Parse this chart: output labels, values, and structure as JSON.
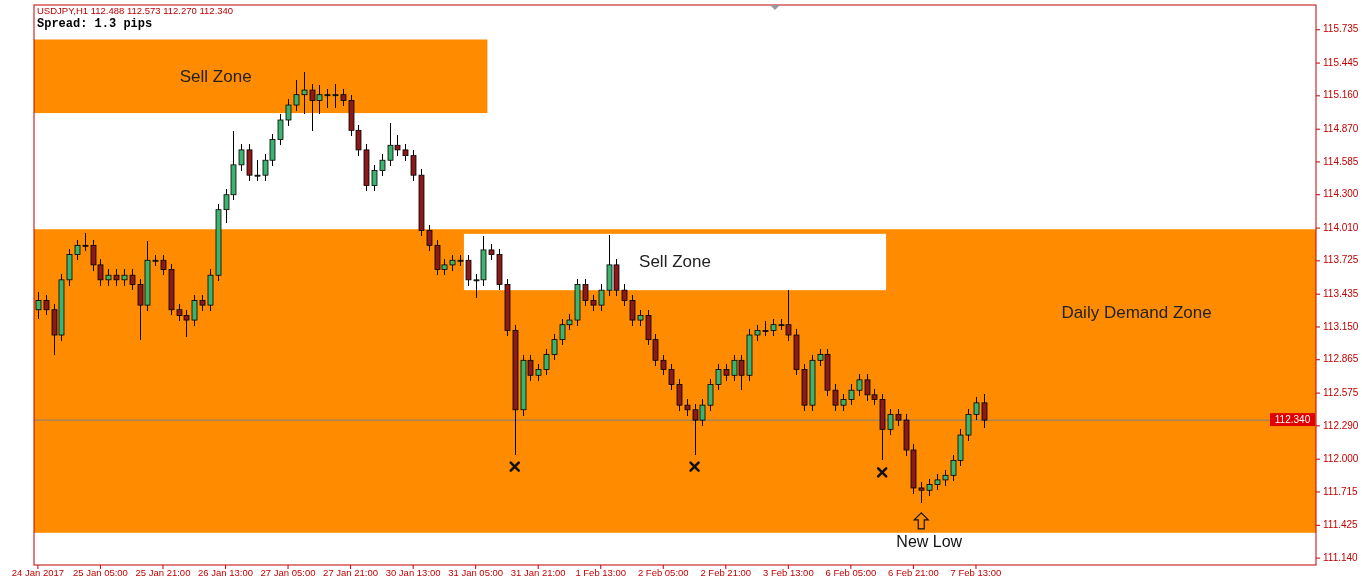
{
  "chart_data": {
    "type": "candlestick",
    "title": "USDJPY,H1  112.488 112.573 112.270 112.340",
    "subtitle": "Spread: 1.3 pips",
    "categories": [
      "24 Jan 2017",
      null,
      null,
      null,
      null,
      null,
      null,
      null,
      "25 Jan 05:00",
      null,
      null,
      null,
      null,
      null,
      null,
      null,
      "25 Jan 21:00",
      null,
      null,
      null,
      null,
      null,
      null,
      null,
      "26 Jan 13:00",
      null,
      null,
      null,
      null,
      null,
      null,
      null,
      "27 Jan 05:00",
      null,
      null,
      null,
      null,
      null,
      null,
      null,
      "27 Jan 21:00",
      null,
      null,
      null,
      null,
      null,
      null,
      null,
      "30 Jan 13:00",
      null,
      null,
      null,
      null,
      null,
      null,
      null,
      "31 Jan 05:00",
      null,
      null,
      null,
      null,
      null,
      null,
      null,
      "31 Jan 21:00",
      null,
      null,
      null,
      null,
      null,
      null,
      null,
      "1 Feb 13:00",
      null,
      null,
      null,
      null,
      null,
      null,
      null,
      "2 Feb 05:00",
      null,
      null,
      null,
      null,
      null,
      null,
      null,
      "2 Feb 21:00",
      null,
      null,
      null,
      null,
      null,
      null,
      null,
      "3 Feb 13:00",
      null,
      null,
      null,
      null,
      null,
      null,
      null,
      "6 Feb 05:00",
      null,
      null,
      null,
      null,
      null,
      null,
      null,
      "6 Feb 21:00",
      null,
      null,
      null,
      null,
      null,
      null,
      null,
      "7 Feb 13:00",
      null,
      null,
      null,
      null,
      null,
      null,
      null,
      null,
      null,
      null,
      null,
      null,
      null,
      null,
      null,
      null,
      null,
      null,
      null,
      null,
      null,
      null,
      null,
      null,
      null,
      null,
      null,
      null,
      null,
      null,
      null,
      null,
      null,
      null,
      null,
      null,
      null,
      null,
      null,
      null,
      null,
      null,
      null
    ],
    "ohlc": [
      [
        113.3,
        113.45,
        113.22,
        113.38
      ],
      [
        113.38,
        113.43,
        113.25,
        113.3
      ],
      [
        113.3,
        113.35,
        112.91,
        113.08
      ],
      [
        113.08,
        113.61,
        113.03,
        113.56
      ],
      [
        113.56,
        113.83,
        113.51,
        113.78
      ],
      [
        113.78,
        113.91,
        113.73,
        113.86
      ],
      [
        113.86,
        113.97,
        113.81,
        113.86
      ],
      [
        113.86,
        113.91,
        113.64,
        113.69
      ],
      [
        113.69,
        113.74,
        113.51,
        113.56
      ],
      [
        113.56,
        113.65,
        113.51,
        113.6
      ],
      [
        113.6,
        113.65,
        113.51,
        113.56
      ],
      [
        113.56,
        113.65,
        113.51,
        113.6
      ],
      [
        113.6,
        113.65,
        113.47,
        113.52
      ],
      [
        113.52,
        113.57,
        113.04,
        113.34
      ],
      [
        113.34,
        113.9,
        113.29,
        113.73
      ],
      [
        113.73,
        113.78,
        113.68,
        113.73
      ],
      [
        113.73,
        113.78,
        113.6,
        113.65
      ],
      [
        113.65,
        113.7,
        113.25,
        113.3
      ],
      [
        113.3,
        113.35,
        113.2,
        113.25
      ],
      [
        113.25,
        113.3,
        113.06,
        113.21
      ],
      [
        113.21,
        113.43,
        113.16,
        113.38
      ],
      [
        113.38,
        113.43,
        113.29,
        113.34
      ],
      [
        113.34,
        113.65,
        113.29,
        113.6
      ],
      [
        113.6,
        114.22,
        113.55,
        114.17
      ],
      [
        114.17,
        114.35,
        114.05,
        114.3
      ],
      [
        114.3,
        114.85,
        114.25,
        114.56
      ],
      [
        114.56,
        114.74,
        114.51,
        114.69
      ],
      [
        114.69,
        114.74,
        114.42,
        114.47
      ],
      [
        114.47,
        114.6,
        114.42,
        114.47
      ],
      [
        114.47,
        114.65,
        114.42,
        114.6
      ],
      [
        114.6,
        114.83,
        114.55,
        114.78
      ],
      [
        114.78,
        115.0,
        114.73,
        114.95
      ],
      [
        114.95,
        115.13,
        114.9,
        115.08
      ],
      [
        115.08,
        115.3,
        115.03,
        115.17
      ],
      [
        115.17,
        115.37,
        115.0,
        115.21
      ],
      [
        115.21,
        115.26,
        114.85,
        115.12
      ],
      [
        115.12,
        115.25,
        115.0,
        115.17
      ],
      [
        115.17,
        115.22,
        115.05,
        115.17
      ],
      [
        115.17,
        115.26,
        115.05,
        115.17
      ],
      [
        115.17,
        115.22,
        115.07,
        115.12
      ],
      [
        115.12,
        115.17,
        114.81,
        114.86
      ],
      [
        114.86,
        114.91,
        114.64,
        114.69
      ],
      [
        114.69,
        114.74,
        114.33,
        114.38
      ],
      [
        114.38,
        114.56,
        114.33,
        114.51
      ],
      [
        114.51,
        114.65,
        114.46,
        114.6
      ],
      [
        114.6,
        114.92,
        114.55,
        114.73
      ],
      [
        114.73,
        114.82,
        114.64,
        114.69
      ],
      [
        114.69,
        114.74,
        114.59,
        114.64
      ],
      [
        114.64,
        114.69,
        114.42,
        114.47
      ],
      [
        114.47,
        114.52,
        113.94,
        113.99
      ],
      [
        113.99,
        114.04,
        113.81,
        113.86
      ],
      [
        113.86,
        113.91,
        113.6,
        113.65
      ],
      [
        113.65,
        113.74,
        113.6,
        113.69
      ],
      [
        113.69,
        113.78,
        113.64,
        113.73
      ],
      [
        113.73,
        113.78,
        113.68,
        113.73
      ],
      [
        113.73,
        113.78,
        113.51,
        113.56
      ],
      [
        113.56,
        113.61,
        113.4,
        113.56
      ],
      [
        113.56,
        113.94,
        113.51,
        113.82
      ],
      [
        113.82,
        113.87,
        113.73,
        113.78
      ],
      [
        113.78,
        113.83,
        113.47,
        113.52
      ],
      [
        113.52,
        113.57,
        113.07,
        113.12
      ],
      [
        113.12,
        113.17,
        112.04,
        112.43
      ],
      [
        112.43,
        112.91,
        112.38,
        112.86
      ],
      [
        112.86,
        112.91,
        112.68,
        112.73
      ],
      [
        112.73,
        112.83,
        112.68,
        112.78
      ],
      [
        112.78,
        112.96,
        112.73,
        112.91
      ],
      [
        112.91,
        113.09,
        112.86,
        113.04
      ],
      [
        113.04,
        113.22,
        112.99,
        113.17
      ],
      [
        113.17,
        113.26,
        113.12,
        113.21
      ],
      [
        113.21,
        113.57,
        113.16,
        113.52
      ],
      [
        113.52,
        113.57,
        113.33,
        113.38
      ],
      [
        113.38,
        113.43,
        113.29,
        113.34
      ],
      [
        113.34,
        113.52,
        113.29,
        113.47
      ],
      [
        113.47,
        113.95,
        113.42,
        113.69
      ],
      [
        113.69,
        113.74,
        113.42,
        113.47
      ],
      [
        113.47,
        113.52,
        113.33,
        113.38
      ],
      [
        113.38,
        113.43,
        113.16,
        113.21
      ],
      [
        113.21,
        113.3,
        113.16,
        113.25
      ],
      [
        113.25,
        113.3,
        112.99,
        113.04
      ],
      [
        113.04,
        113.09,
        112.81,
        112.86
      ],
      [
        112.86,
        112.91,
        112.73,
        112.78
      ],
      [
        112.78,
        112.83,
        112.6,
        112.65
      ],
      [
        112.65,
        112.7,
        112.42,
        112.47
      ],
      [
        112.47,
        112.52,
        112.38,
        112.43
      ],
      [
        112.43,
        112.48,
        112.04,
        112.34
      ],
      [
        112.34,
        112.52,
        112.29,
        112.47
      ],
      [
        112.47,
        112.7,
        112.42,
        112.65
      ],
      [
        112.65,
        112.83,
        112.6,
        112.78
      ],
      [
        112.78,
        112.83,
        112.68,
        112.73
      ],
      [
        112.73,
        112.91,
        112.68,
        112.86
      ],
      [
        112.86,
        112.91,
        112.6,
        112.73
      ],
      [
        112.73,
        113.13,
        112.68,
        113.08
      ],
      [
        113.08,
        113.17,
        113.03,
        113.12
      ],
      [
        113.12,
        113.2,
        113.07,
        113.12
      ],
      [
        113.12,
        113.22,
        113.07,
        113.17
      ],
      [
        113.17,
        113.22,
        113.12,
        113.17
      ],
      [
        113.17,
        113.47,
        113.03,
        113.08
      ],
      [
        113.08,
        113.13,
        112.73,
        112.78
      ],
      [
        112.78,
        112.83,
        112.42,
        112.47
      ],
      [
        112.47,
        112.91,
        112.42,
        112.86
      ],
      [
        112.86,
        112.96,
        112.81,
        112.91
      ],
      [
        112.91,
        112.96,
        112.55,
        112.6
      ],
      [
        112.6,
        112.65,
        112.42,
        112.47
      ],
      [
        112.47,
        112.57,
        112.42,
        112.52
      ],
      [
        112.52,
        112.65,
        112.47,
        112.6
      ],
      [
        112.6,
        112.74,
        112.55,
        112.69
      ],
      [
        112.69,
        112.74,
        112.51,
        112.56
      ],
      [
        112.56,
        112.61,
        112.47,
        112.52
      ],
      [
        112.52,
        112.57,
        111.99,
        112.26
      ],
      [
        112.26,
        112.44,
        112.21,
        112.39
      ],
      [
        112.39,
        112.44,
        112.29,
        112.34
      ],
      [
        112.34,
        112.39,
        112.03,
        112.08
      ],
      [
        112.08,
        112.13,
        111.7,
        111.75
      ],
      [
        111.75,
        111.8,
        111.62,
        111.73
      ],
      [
        111.73,
        111.83,
        111.68,
        111.78
      ],
      [
        111.78,
        111.87,
        111.73,
        111.82
      ],
      [
        111.82,
        111.91,
        111.77,
        111.86
      ],
      [
        111.86,
        112.04,
        111.81,
        111.99
      ],
      [
        111.99,
        112.26,
        111.94,
        112.21
      ],
      [
        112.21,
        112.44,
        112.16,
        112.39
      ],
      [
        112.39,
        112.54,
        112.34,
        112.49
      ],
      [
        112.49,
        112.57,
        112.27,
        112.34
      ],
      null,
      null,
      null,
      null,
      null,
      null,
      null,
      null,
      null,
      null,
      null,
      null,
      null,
      null,
      null,
      null,
      null,
      null,
      null,
      null,
      null,
      null,
      null,
      null,
      null,
      null,
      null,
      null,
      null,
      null,
      null,
      null,
      null,
      null,
      null,
      null,
      null,
      null,
      null,
      null,
      null,
      null
    ],
    "ylim": [
      111.08,
      115.95
    ],
    "yticks": [
      {
        "value": 111.14,
        "label": "111.140"
      },
      {
        "value": 111.425,
        "label": "111.425"
      },
      111.715,
      {
        "value": 112.0,
        "label": "112.000"
      },
      {
        "value": 112.29,
        "label": "112.290"
      },
      112.575,
      {
        "value": 112.865,
        "label": "112.865"
      },
      {
        "value": 113.15,
        "label": "113.150"
      },
      113.435,
      113.725,
      {
        "value": 114.01,
        "label": "114.010"
      },
      {
        "value": 114.3,
        "label": "114.300"
      },
      114.585,
      {
        "value": 114.87,
        "label": "114.870"
      },
      {
        "value": 115.16,
        "label": "115.160"
      },
      115.445,
      115.735
    ],
    "bands": [
      {
        "axis": "y",
        "from": 111.36,
        "to": 114.0,
        "label": "Daily Demand Zone",
        "color": "#ff8c00"
      },
      {
        "axis": "y",
        "from": 115.01,
        "to": 115.65,
        "label": "Sell Zone",
        "color": "#ff8c00"
      },
      {
        "axis": "y",
        "from": 113.47,
        "to": 113.96,
        "label": "Sell Zone",
        "color": "#ffffff"
      }
    ],
    "ref_lines": [
      {
        "axis": "y",
        "value": 112.34,
        "label": "112.340",
        "color": "#808080"
      }
    ],
    "annotations": [
      "New Low"
    ],
    "grid": false
  }
}
